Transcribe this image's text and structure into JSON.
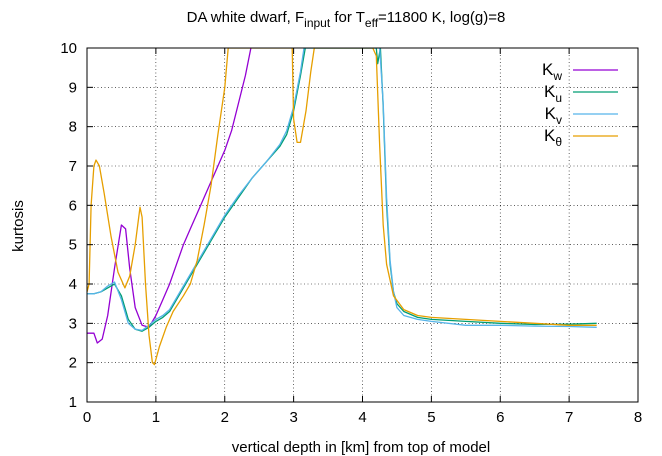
{
  "chart_data": {
    "type": "line",
    "title": {
      "pre": "DA white dwarf, F",
      "pre_sub": "input",
      "mid": " for T",
      "mid_sub": "eff",
      "post": "=11800 K, log(g)=8"
    },
    "xlabel": "vertical depth in [km] from top of model",
    "ylabel": "kurtosis",
    "xlim": [
      0,
      8
    ],
    "ylim": [
      1,
      10
    ],
    "xticks": [
      "0",
      "1",
      "2",
      "3",
      "4",
      "5",
      "6",
      "7",
      "8"
    ],
    "yticks": [
      "1",
      "2",
      "3",
      "4",
      "5",
      "6",
      "7",
      "8",
      "9",
      "10"
    ],
    "grid": true,
    "legend_position": "top-right",
    "series": [
      {
        "name": "K",
        "name_sub": "w",
        "color": "#9400d3",
        "points": [
          [
            0.0,
            2.75
          ],
          [
            0.1,
            2.75
          ],
          [
            0.15,
            2.5
          ],
          [
            0.22,
            2.6
          ],
          [
            0.3,
            3.2
          ],
          [
            0.4,
            4.4
          ],
          [
            0.5,
            5.5
          ],
          [
            0.56,
            5.4
          ],
          [
            0.62,
            4.4
          ],
          [
            0.7,
            3.4
          ],
          [
            0.8,
            2.95
          ],
          [
            0.9,
            2.9
          ],
          [
            1.0,
            3.2
          ],
          [
            1.1,
            3.6
          ],
          [
            1.2,
            4.0
          ],
          [
            1.3,
            4.5
          ],
          [
            1.4,
            5.0
          ],
          [
            1.5,
            5.4
          ],
          [
            1.6,
            5.8
          ],
          [
            1.7,
            6.2
          ],
          [
            1.8,
            6.6
          ],
          [
            1.9,
            7.0
          ],
          [
            2.0,
            7.4
          ],
          [
            2.1,
            7.9
          ],
          [
            2.2,
            8.6
          ],
          [
            2.3,
            9.3
          ],
          [
            2.38,
            10.0
          ]
        ]
      },
      {
        "name": "K",
        "name_sub": "u",
        "color": "#009e73",
        "points": [
          [
            0.0,
            3.75
          ],
          [
            0.1,
            3.75
          ],
          [
            0.2,
            3.8
          ],
          [
            0.3,
            3.9
          ],
          [
            0.4,
            4.0
          ],
          [
            0.5,
            3.7
          ],
          [
            0.6,
            3.1
          ],
          [
            0.7,
            2.85
          ],
          [
            0.8,
            2.8
          ],
          [
            0.9,
            2.9
          ],
          [
            1.0,
            3.05
          ],
          [
            1.1,
            3.15
          ],
          [
            1.2,
            3.3
          ],
          [
            1.3,
            3.6
          ],
          [
            1.4,
            3.9
          ],
          [
            1.5,
            4.2
          ],
          [
            1.6,
            4.5
          ],
          [
            1.7,
            4.8
          ],
          [
            1.8,
            5.1
          ],
          [
            1.9,
            5.4
          ],
          [
            2.0,
            5.7
          ],
          [
            2.2,
            6.2
          ],
          [
            2.4,
            6.7
          ],
          [
            2.6,
            7.1
          ],
          [
            2.8,
            7.5
          ],
          [
            2.9,
            7.8
          ],
          [
            3.0,
            8.4
          ],
          [
            3.1,
            9.3
          ],
          [
            3.17,
            10.0
          ],
          [
            4.2,
            10.0
          ],
          [
            4.22,
            9.6
          ],
          [
            4.26,
            10.0
          ],
          [
            4.3,
            8.5
          ],
          [
            4.35,
            6.0
          ],
          [
            4.4,
            4.5
          ],
          [
            4.45,
            3.8
          ],
          [
            4.5,
            3.5
          ],
          [
            4.6,
            3.3
          ],
          [
            4.8,
            3.15
          ],
          [
            5.0,
            3.1
          ],
          [
            5.5,
            3.05
          ],
          [
            6.0,
            3.0
          ],
          [
            6.5,
            2.97
          ],
          [
            7.0,
            2.98
          ],
          [
            7.4,
            3.0
          ]
        ]
      },
      {
        "name": "K",
        "name_sub": "v",
        "color": "#56b4e9",
        "points": [
          [
            0.0,
            3.75
          ],
          [
            0.1,
            3.75
          ],
          [
            0.2,
            3.8
          ],
          [
            0.3,
            3.95
          ],
          [
            0.4,
            4.05
          ],
          [
            0.5,
            3.6
          ],
          [
            0.6,
            3.0
          ],
          [
            0.7,
            2.85
          ],
          [
            0.8,
            2.82
          ],
          [
            0.9,
            2.95
          ],
          [
            1.0,
            3.1
          ],
          [
            1.1,
            3.2
          ],
          [
            1.2,
            3.35
          ],
          [
            1.3,
            3.65
          ],
          [
            1.4,
            3.95
          ],
          [
            1.5,
            4.25
          ],
          [
            1.6,
            4.55
          ],
          [
            1.7,
            4.85
          ],
          [
            1.8,
            5.15
          ],
          [
            1.9,
            5.45
          ],
          [
            2.0,
            5.75
          ],
          [
            2.2,
            6.25
          ],
          [
            2.4,
            6.7
          ],
          [
            2.6,
            7.1
          ],
          [
            2.8,
            7.55
          ],
          [
            2.9,
            7.9
          ],
          [
            3.0,
            8.5
          ],
          [
            3.1,
            9.4
          ],
          [
            3.15,
            10.0
          ],
          [
            4.25,
            10.0
          ],
          [
            4.3,
            8.6
          ],
          [
            4.35,
            6.2
          ],
          [
            4.4,
            4.6
          ],
          [
            4.45,
            3.8
          ],
          [
            4.5,
            3.4
          ],
          [
            4.6,
            3.2
          ],
          [
            4.8,
            3.1
          ],
          [
            5.0,
            3.05
          ],
          [
            5.5,
            2.95
          ],
          [
            6.0,
            2.95
          ],
          [
            6.5,
            2.93
          ],
          [
            7.0,
            2.92
          ],
          [
            7.4,
            2.9
          ]
        ]
      },
      {
        "name": "K",
        "name_sub": "θ",
        "color": "#e69f00",
        "points": [
          [
            0.0,
            3.8
          ],
          [
            0.03,
            4.0
          ],
          [
            0.06,
            6.0
          ],
          [
            0.1,
            7.0
          ],
          [
            0.13,
            7.15
          ],
          [
            0.18,
            7.0
          ],
          [
            0.25,
            6.3
          ],
          [
            0.35,
            5.2
          ],
          [
            0.45,
            4.3
          ],
          [
            0.55,
            3.9
          ],
          [
            0.62,
            4.2
          ],
          [
            0.7,
            5.0
          ],
          [
            0.77,
            5.95
          ],
          [
            0.8,
            5.7
          ],
          [
            0.85,
            4.0
          ],
          [
            0.9,
            2.7
          ],
          [
            0.95,
            2.0
          ],
          [
            0.98,
            1.95
          ],
          [
            1.05,
            2.4
          ],
          [
            1.15,
            2.9
          ],
          [
            1.25,
            3.3
          ],
          [
            1.4,
            3.7
          ],
          [
            1.5,
            4.0
          ],
          [
            1.6,
            4.6
          ],
          [
            1.7,
            5.5
          ],
          [
            1.8,
            6.5
          ],
          [
            1.9,
            7.8
          ],
          [
            2.0,
            9.0
          ],
          [
            2.05,
            10.0
          ],
          [
            2.98,
            10.0
          ],
          [
            3.0,
            8.2
          ],
          [
            3.05,
            7.6
          ],
          [
            3.1,
            7.6
          ],
          [
            3.18,
            8.4
          ],
          [
            3.25,
            9.4
          ],
          [
            3.3,
            10.0
          ],
          [
            4.15,
            10.0
          ],
          [
            4.2,
            9.8
          ],
          [
            4.25,
            7.5
          ],
          [
            4.3,
            5.5
          ],
          [
            4.35,
            4.5
          ],
          [
            4.45,
            3.7
          ],
          [
            4.6,
            3.35
          ],
          [
            4.8,
            3.2
          ],
          [
            5.0,
            3.15
          ],
          [
            5.5,
            3.1
          ],
          [
            6.0,
            3.05
          ],
          [
            6.5,
            3.0
          ],
          [
            7.0,
            2.95
          ],
          [
            7.4,
            2.95
          ]
        ]
      }
    ]
  }
}
